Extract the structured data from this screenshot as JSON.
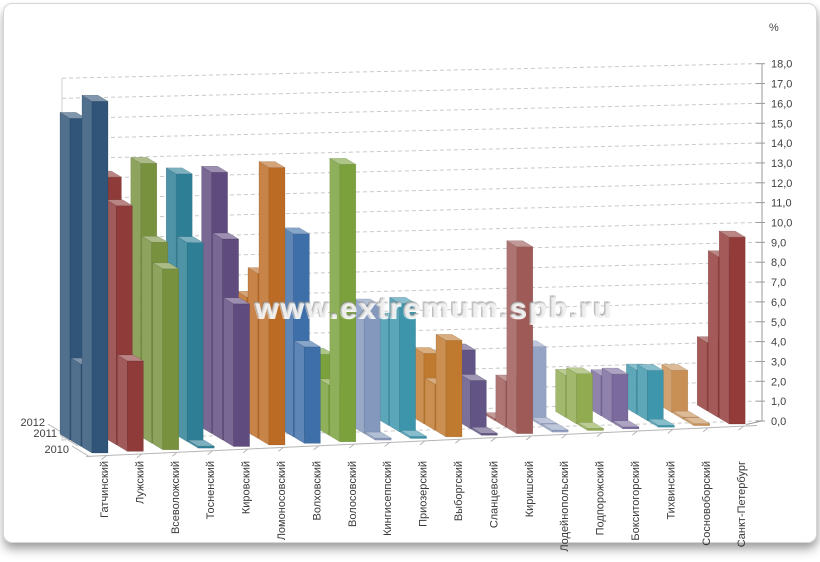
{
  "watermark": "www.extremum.spb.ru",
  "chart_data": {
    "type": "bar",
    "projection": "3d-column",
    "title": "",
    "value_axis": {
      "title": "%",
      "min": 0,
      "max": 18,
      "step": 1,
      "decimal_separator": ","
    },
    "depth_axis_labels_top_to_bottom": [
      "2012",
      "2011",
      "2010"
    ],
    "grid": "dashed",
    "legend_position": "none",
    "categories": [
      "Гатчинский",
      "Лужский",
      "Всеволожский",
      "Тосненский",
      "Кировский",
      "Ломоносовский",
      "Волховский",
      "Волосовский",
      "Кингисеппский",
      "Приозерский",
      "Выборгский",
      "Сланцевский",
      "Киришский",
      "Лодейнопольский",
      "Подпорожский",
      "Бокситогорский",
      "Тихвинский",
      "Сосновоборский",
      "Санкт-Петербург"
    ],
    "category_colors": [
      "#305579",
      "#8E3B39",
      "#78913E",
      "#2E7F96",
      "#5F4B7E",
      "#BC6B25",
      "#3F6FA8",
      "#7AA13C",
      "#8497BC",
      "#3D95AC",
      "#C07A30",
      "#625585",
      "#9D5A57",
      "#95A3C4",
      "#90AB50",
      "#7A6A9D",
      "#3E96AC",
      "#C89055",
      "#923B39"
    ],
    "series": [
      {
        "name": "2010",
        "values": [
          17.5,
          4.5,
          9.0,
          0.1,
          7.1,
          13.8,
          4.8,
          13.8,
          0.1,
          0.1,
          4.8,
          0.1,
          9.3,
          0.1,
          0.1,
          0.1,
          0.1,
          0.1,
          9.3
        ]
      },
      {
        "name": "2011",
        "values": [
          4.1,
          11.9,
          10.0,
          9.9,
          10.0,
          8.2,
          10.1,
          2.5,
          6.4,
          6.4,
          2.3,
          2.4,
          2.3,
          0.1,
          2.5,
          2.4,
          2.5,
          0.1,
          8.0
        ]
      },
      {
        "name": "2012",
        "values": [
          16.0,
          13.0,
          13.6,
          13.0,
          13.0,
          6.7,
          3.5,
          3.7,
          5.3,
          5.3,
          3.5,
          3.6,
          0.1,
          3.6,
          2.1,
          2.0,
          2.2,
          2.1,
          3.4
        ]
      }
    ]
  }
}
